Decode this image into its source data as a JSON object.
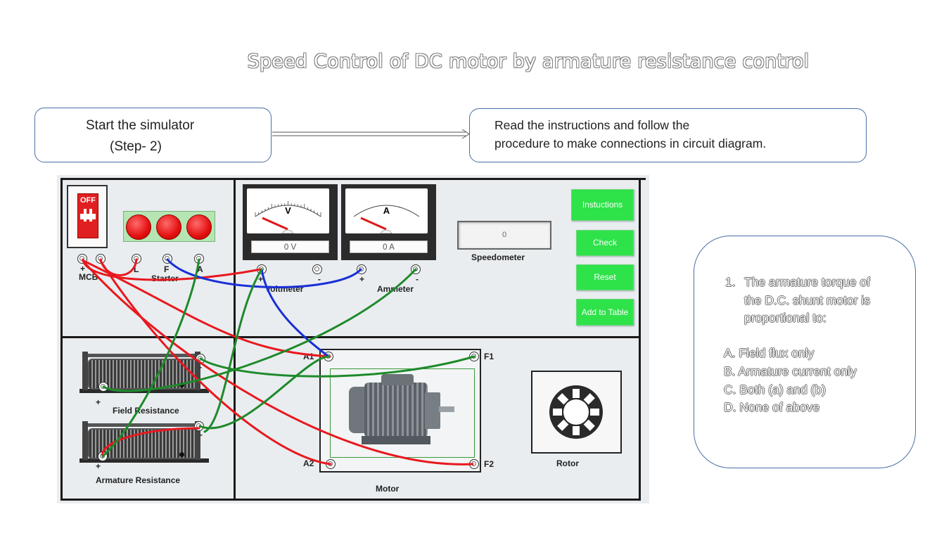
{
  "title": "Speed Control of DC motor by armature resistance control",
  "step_box": {
    "line1": "Start the simulator",
    "line2": "(Step- 2)"
  },
  "instruction_box": {
    "line1": "Read the instructions and follow the",
    "line2": "procedure to make connections in circuit diagram."
  },
  "quiz": {
    "number": "1.",
    "question": "The armature torque of the D.C. shunt motor is proportional to:",
    "options": [
      "A. Field flux only",
      "B. Armature current only",
      "C. Both (a) and (b)",
      "D. None of above"
    ]
  },
  "panel": {
    "mcb": {
      "state": "OFF",
      "label": "MCB"
    },
    "starter": {
      "label": "Starter",
      "terminals": [
        "+",
        "L",
        "F",
        "A"
      ]
    },
    "voltmeter": {
      "symbol": "V",
      "reading": "0 V",
      "label": "Voltmeter",
      "terminals": [
        "+",
        "-"
      ]
    },
    "ammeter": {
      "symbol": "A",
      "reading": "0 A",
      "label": "Ammeter",
      "terminals": [
        "+",
        "-"
      ]
    },
    "speedometer": {
      "value": "0",
      "label": "Speedometer"
    },
    "buttons": {
      "instructions": "Instuctions",
      "check": "Check",
      "reset": "Reset",
      "add_to_table": "Add to Table"
    },
    "field_resistance": {
      "label": "Field Resistance",
      "plus": "+",
      "minus": "-"
    },
    "armature_resistance": {
      "label": "Armature Resistance",
      "plus": "+",
      "minus": "-"
    },
    "motor": {
      "label": "Motor",
      "terminals": [
        "A1",
        "A2",
        "F1",
        "F2"
      ]
    },
    "rotor": {
      "label": "Rotor"
    }
  },
  "colors": {
    "button_green": "#2ee24a",
    "lamp_red": "#e31010",
    "wire_red": "#e8181e",
    "wire_green": "#1e8a2a",
    "wire_blue": "#1a2fd6",
    "callout_border": "#4a6fa5"
  }
}
